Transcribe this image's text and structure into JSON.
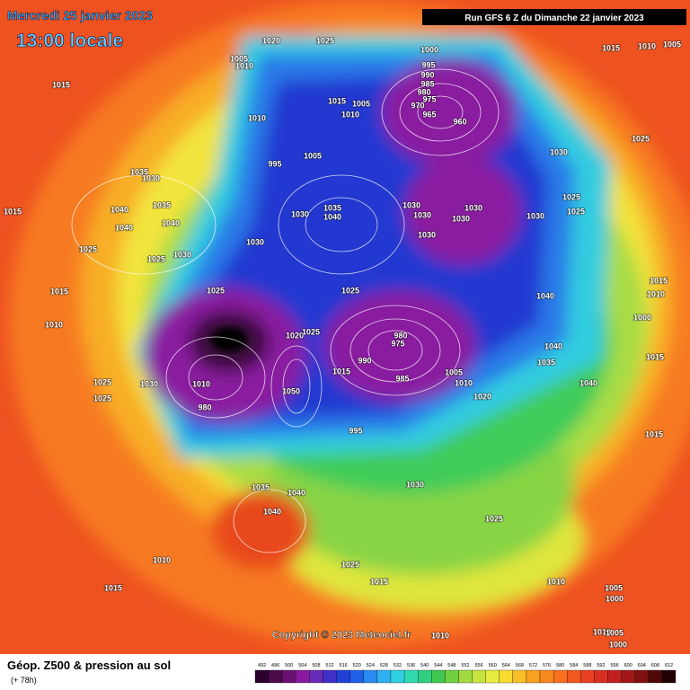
{
  "header": {
    "title": "Mercredi 25 janvier 2023",
    "time": "13:00 locale",
    "run": "Run GFS 6 Z du Dimanche 22 janvier 2023"
  },
  "copyright": "Copyright © 2023 Meteociel.fr",
  "footer": {
    "product": "Géop. Z500 & pression au sol",
    "lead": "(+ 78h)"
  },
  "colorbar": {
    "values": [
      492,
      496,
      500,
      504,
      508,
      512,
      516,
      520,
      524,
      528,
      532,
      536,
      540,
      544,
      548,
      552,
      556,
      560,
      564,
      568,
      572,
      576,
      580,
      584,
      588,
      592,
      596,
      600,
      604,
      608,
      612
    ],
    "colors": [
      "#2a002a",
      "#4a0a4a",
      "#6a1070",
      "#8a1aa0",
      "#6a2ab8",
      "#4030c8",
      "#2040d8",
      "#2060e8",
      "#2a8af0",
      "#30b0f0",
      "#30d0e0",
      "#30d8b0",
      "#30d080",
      "#40c850",
      "#70d040",
      "#a0dc40",
      "#c8e440",
      "#e8ec40",
      "#f8dc30",
      "#f8c028",
      "#f8a020",
      "#f88820",
      "#f87020",
      "#f05820",
      "#e84020",
      "#d83020",
      "#c02020",
      "#a01818",
      "#801010",
      "#500808",
      "#200000"
    ]
  },
  "isobars": [
    1020,
    1025,
    1000,
    1015,
    1010,
    1005,
    1005,
    1010,
    995,
    990,
    985,
    980,
    975,
    970,
    1015,
    1015,
    1005,
    1010,
    965,
    960,
    1010,
    1025,
    995,
    1005,
    1030,
    1035,
    1030,
    1015,
    1040,
    1035,
    1040,
    1040,
    1035,
    1040,
    1030,
    1030,
    1030,
    1030,
    1030,
    1030,
    1025,
    1025,
    1030,
    1030,
    1025,
    1025,
    1030,
    1015,
    1025,
    1025,
    1040,
    1015,
    1010,
    1000,
    1010,
    1020,
    1025,
    980,
    975,
    990,
    1015,
    985,
    1040,
    1035,
    1015,
    1005,
    1010,
    1030,
    1025,
    1025,
    1050,
    1010,
    980,
    995,
    1020,
    1040,
    1015,
    1035,
    1040,
    1040,
    1030,
    1025,
    1010,
    1015,
    1025,
    1015,
    1010,
    1005,
    1000,
    1010,
    1010,
    1005,
    1000
  ]
}
